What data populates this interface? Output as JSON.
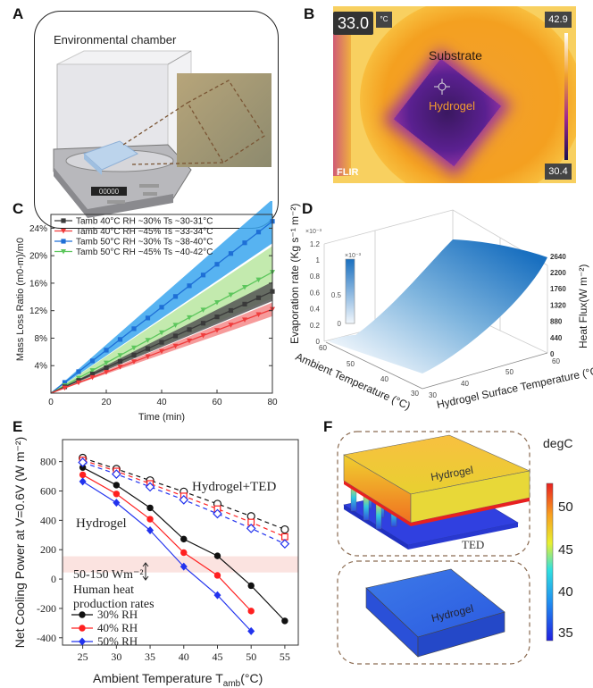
{
  "panels": {
    "a": "A",
    "b": "B",
    "c": "C",
    "d": "D",
    "e": "E",
    "f": "F"
  },
  "panel_a": {
    "title": "Environmental chamber",
    "display": "00000"
  },
  "panel_b": {
    "temp_readout": "33.0",
    "unit": "°C",
    "scale_max": "42.9",
    "scale_min": "30.4",
    "label_substrate": "Substrate",
    "label_hydrogel": "Hydrogel",
    "brand": "FLIR"
  },
  "chart_data": [
    {
      "type": "line",
      "panel": "C",
      "xlabel": "Time (min)",
      "ylabel": "Mass Loss Ratio (m0-m)/m0",
      "xlim": [
        0,
        80
      ],
      "ylim": [
        0,
        26
      ],
      "xticks": [
        "0",
        "20",
        "40",
        "60",
        "80"
      ],
      "yticks": [
        "4%",
        "8%",
        "12%",
        "16%",
        "20%",
        "24%"
      ],
      "legend_placement": "top-left",
      "x": [
        0,
        5,
        10,
        15,
        20,
        25,
        30,
        35,
        40,
        45,
        50,
        55,
        60,
        65,
        70,
        75,
        80
      ],
      "series": [
        {
          "name": "Tamb 40°C RH ~30% Ts ~30-31°C",
          "color": "#3a3a3a",
          "band": "#555555",
          "end_value": 14.8,
          "band_halfwidth_end": 1.4,
          "marker": "square"
        },
        {
          "name": "Tamb 40°C RH ~45% Ts ~33-34°C",
          "color": "#f03c3c",
          "band": "#f58a8a",
          "end_value": 12.2,
          "band_halfwidth_end": 1.0,
          "marker": "triangle-down"
        },
        {
          "name": "Tamb 50°C RH ~30% Ts ~38-40°C",
          "color": "#1e6fd6",
          "band": "#3aa6ee",
          "end_value": 25.0,
          "band_halfwidth_end": 3.2,
          "marker": "square"
        },
        {
          "name": "Tamb 50°C RH ~45% Ts ~40-42°C",
          "color": "#5cc65c",
          "band": "#b8e6a0",
          "end_value": 17.6,
          "band_halfwidth_end": 3.8,
          "marker": "triangle-down"
        }
      ]
    },
    {
      "type": "surface",
      "panel": "D",
      "zlabel": "Evaporation rate (Kg s-1 m-2)",
      "zlabel_html": "Evaporation rate (Kg s⁻¹ m⁻²)",
      "z_multiplier": "×10⁻³",
      "zticks": [
        "0",
        "0.2",
        "0.4",
        "0.6",
        "0.8",
        "1",
        "1.2"
      ],
      "right_label": "Heat Flux(W m⁻²)",
      "right_ticks": [
        "0",
        "440",
        "880",
        "1320",
        "1760",
        "2200",
        "2640"
      ],
      "xlabel": "Ambient Temperature (°C)",
      "xticks": [
        "60",
        "50",
        "40",
        "30"
      ],
      "ylabel": "Hydrogel Surface Temperature (°C)",
      "yticks": [
        "30",
        "40",
        "50",
        "60"
      ],
      "colorbar": {
        "multiplier": "×10⁻³",
        "ticks": [
          "0",
          "0.5"
        ]
      }
    },
    {
      "type": "line",
      "panel": "E",
      "xlabel": "Ambient Temperature  T",
      "xlabel_sub": "amb",
      "xlabel_unit": "(°C)",
      "ylabel": "Net Cooling Power at V=0.6V (W m⁻²)",
      "xlim": [
        22,
        57
      ],
      "ylim": [
        -450,
        950
      ],
      "xticks": [
        25,
        30,
        35,
        40,
        45,
        50,
        55
      ],
      "yticks": [
        -400,
        -200,
        0,
        200,
        400,
        600,
        800
      ],
      "band": {
        "from": 45,
        "to": 155,
        "color": "#fbe3e0",
        "label": "50-150 Wm⁻²"
      },
      "annotations": {
        "hydrogel": "Hydrogel",
        "hydrogel_ted": "Hydrogel+TED",
        "human1": "Human heat",
        "human2": "production rates"
      },
      "legend_placement": "bottom-left",
      "series": [
        {
          "name": "30% RH",
          "group": "Hydrogel",
          "color": "#111111",
          "marker": "circle",
          "x": [
            25,
            30,
            35,
            40,
            45,
            50,
            55
          ],
          "values": [
            760,
            640,
            485,
            272,
            158,
            -45,
            -285
          ]
        },
        {
          "name": "40% RH",
          "group": "Hydrogel",
          "color": "#ff2020",
          "marker": "circle",
          "x": [
            25,
            30,
            35,
            40,
            45,
            50
          ],
          "values": [
            710,
            580,
            408,
            180,
            25,
            -218
          ]
        },
        {
          "name": "50% RH",
          "group": "Hydrogel",
          "color": "#2233ee",
          "marker": "diamond",
          "x": [
            25,
            30,
            35,
            40,
            45,
            50
          ],
          "values": [
            665,
            520,
            332,
            85,
            -110,
            -355
          ]
        },
        {
          "group": "Hydrogel+TED",
          "color": "#111111",
          "marker": "open-circle",
          "dashed": true,
          "x": [
            25,
            30,
            35,
            40,
            45,
            50,
            55
          ],
          "values": [
            825,
            750,
            672,
            595,
            512,
            428,
            338
          ]
        },
        {
          "group": "Hydrogel+TED",
          "color": "#ff2020",
          "marker": "open-square",
          "dashed": true,
          "x": [
            25,
            30,
            35,
            40,
            45,
            50,
            55
          ],
          "values": [
            810,
            735,
            650,
            565,
            478,
            387,
            288
          ]
        },
        {
          "group": "Hydrogel+TED",
          "color": "#2233ee",
          "marker": "open-diamond",
          "dashed": true,
          "x": [
            25,
            30,
            35,
            40,
            45,
            50,
            55
          ],
          "values": [
            795,
            715,
            628,
            540,
            445,
            345,
            240
          ]
        }
      ]
    }
  ],
  "panel_f": {
    "unit": "degC",
    "ticks": [
      "50",
      "45",
      "40",
      "35"
    ],
    "top_block": "Hydrogel",
    "ted": "TED",
    "bottom_block": "Hydrogel"
  }
}
